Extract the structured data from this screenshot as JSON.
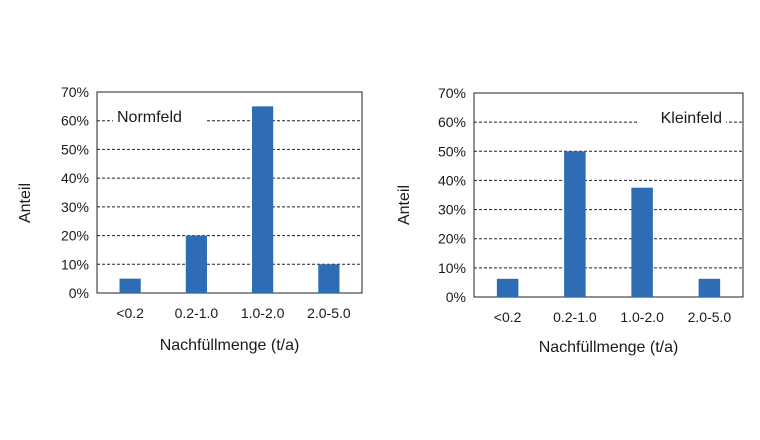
{
  "chart_data": [
    {
      "type": "bar",
      "title": "Normfeld",
      "categories": [
        "<0.2",
        "0.2-1.0",
        "1.0-2.0",
        "2.0-5.0"
      ],
      "values": [
        5,
        20,
        65,
        10
      ],
      "xlabel": "Nachfüllmenge (t/a)",
      "ylabel": "Anteil",
      "ylim": [
        0,
        70
      ],
      "y_ticks": [
        "0%",
        "10%",
        "20%",
        "30%",
        "40%",
        "50%",
        "60%",
        "70%"
      ],
      "grid": true,
      "bar_color": "#2e6db4"
    },
    {
      "type": "bar",
      "title": "Kleinfeld",
      "categories": [
        "<0.2",
        "0.2-1.0",
        "1.0-2.0",
        "2.0-5.0"
      ],
      "values": [
        6.25,
        50,
        37.5,
        6.25
      ],
      "xlabel": "Nachfüllmenge (t/a)",
      "ylabel": "Anteil",
      "ylim": [
        0,
        70
      ],
      "y_ticks": [
        "0%",
        "10%",
        "20%",
        "30%",
        "40%",
        "50%",
        "60%",
        "70%"
      ],
      "grid": true,
      "bar_color": "#2e6db4"
    }
  ]
}
